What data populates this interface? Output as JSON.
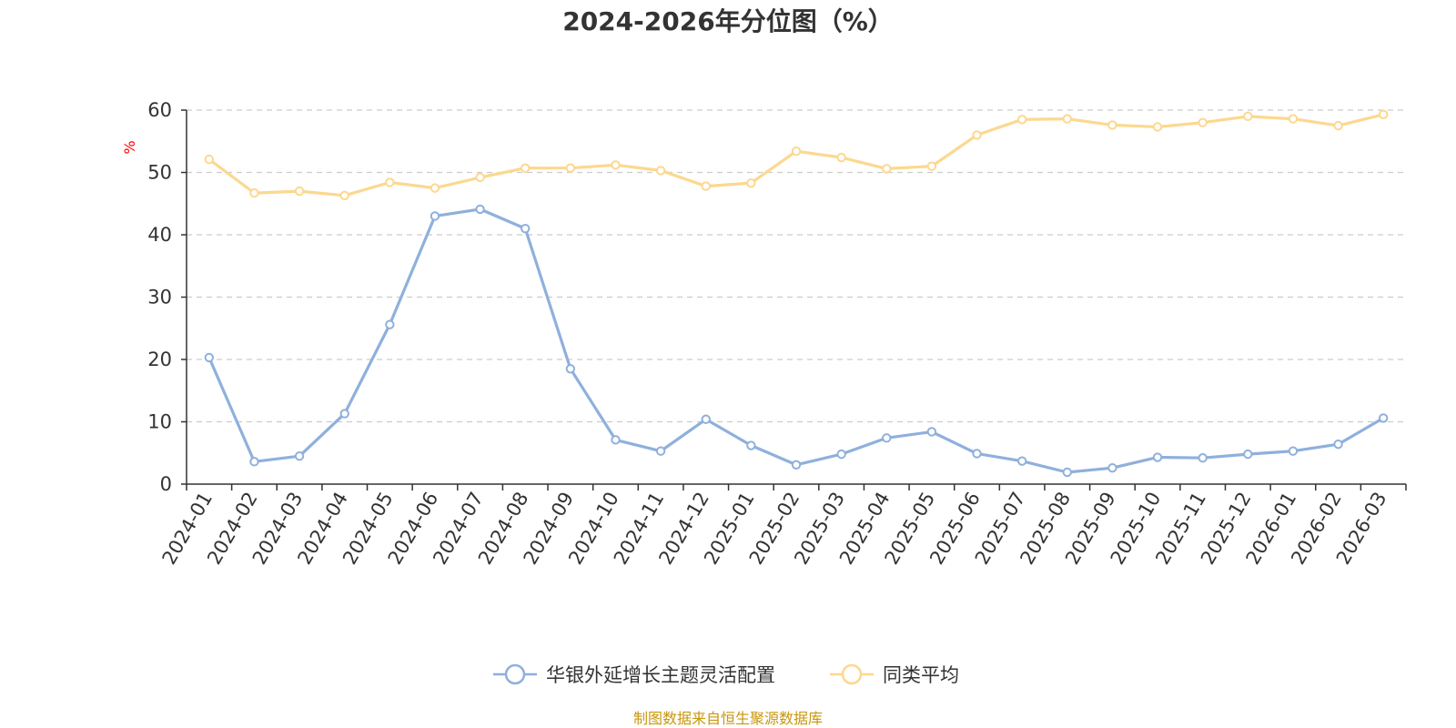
{
  "chart_data": {
    "type": "line",
    "title": "2024-2026年分位图（%）",
    "ylabel": "%",
    "xlabel": "",
    "ylim": [
      0,
      60
    ],
    "yticks": [
      0,
      10,
      20,
      30,
      40,
      50,
      60
    ],
    "grid": true,
    "legend_position": "bottom-center",
    "categories": [
      "2024-01",
      "2024-02",
      "2024-03",
      "2024-04",
      "2024-05",
      "2024-06",
      "2024-07",
      "2024-08",
      "2024-09",
      "2024-10",
      "2024-11",
      "2024-12",
      "2025-01",
      "2025-02",
      "2025-03",
      "2025-04",
      "2025-05",
      "2025-06",
      "2025-07",
      "2025-08",
      "2025-09",
      "2025-10",
      "2025-11",
      "2025-12",
      "2026-01",
      "2026-02",
      "2026-03"
    ],
    "series": [
      {
        "name": "华银外延增长主题灵活配置",
        "color": "#8fb0dc",
        "values": [
          20.3,
          3.6,
          4.5,
          11.3,
          25.6,
          43.0,
          44.1,
          41.0,
          18.5,
          7.1,
          5.3,
          10.4,
          6.2,
          3.1,
          4.8,
          7.4,
          8.4,
          4.9,
          3.7,
          1.9,
          2.6,
          4.3,
          4.2,
          4.8,
          5.3,
          6.4,
          10.6
        ]
      },
      {
        "name": "同类平均",
        "color": "#fcd88f",
        "values": [
          52.1,
          46.7,
          47.0,
          46.3,
          48.4,
          47.5,
          49.2,
          50.7,
          50.7,
          51.2,
          50.3,
          47.8,
          48.3,
          53.4,
          52.4,
          50.6,
          51.0,
          56.0,
          58.5,
          58.6,
          57.6,
          57.3,
          58.0,
          59.0,
          58.6,
          57.5,
          59.3
        ]
      }
    ],
    "source": "制图数据来自恒生聚源数据库",
    "source_color": "#c8960c",
    "axis_color": "#333333",
    "grid_color": "#cccccc",
    "ylabel_color": "#ff0000"
  }
}
